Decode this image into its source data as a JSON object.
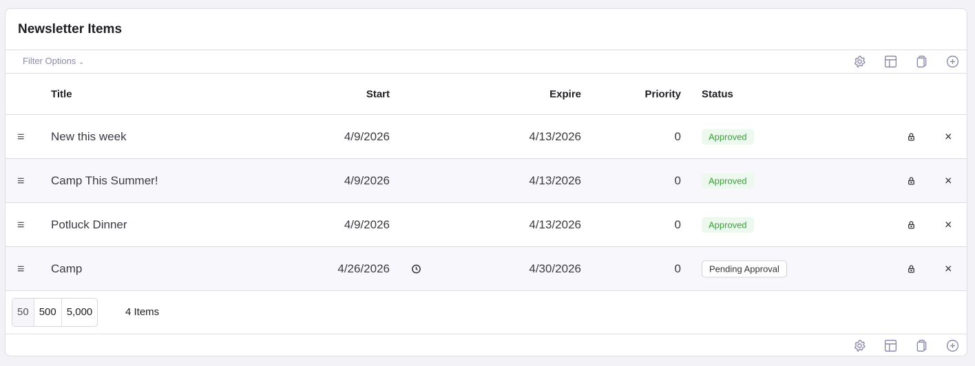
{
  "title": "Newsletter Items",
  "filter_label": "Filter Options",
  "columns": {
    "title": "Title",
    "start": "Start",
    "expire": "Expire",
    "priority": "Priority",
    "status": "Status"
  },
  "rows": [
    {
      "title": "New this week",
      "start": "4/9/2026",
      "expire": "4/13/2026",
      "priority": "0",
      "status": "Approved"
    },
    {
      "title": "Camp This Summer!",
      "start": "4/9/2026",
      "expire": "4/13/2026",
      "priority": "0",
      "status": "Approved"
    },
    {
      "title": "Potluck Dinner",
      "start": "4/9/2026",
      "expire": "4/13/2026",
      "priority": "0",
      "status": "Approved"
    },
    {
      "title": "Camp",
      "start": "4/26/2026",
      "expire": "4/30/2026",
      "priority": "0",
      "status": "Pending Approval",
      "scheduled": true
    }
  ],
  "page_sizes": [
    "50",
    "500",
    "5,000"
  ],
  "item_count": "4 Items",
  "colors": {
    "approved_bg": "#edf8ee",
    "approved_text": "#3c9e3c",
    "icon": "#8a8aa8"
  }
}
